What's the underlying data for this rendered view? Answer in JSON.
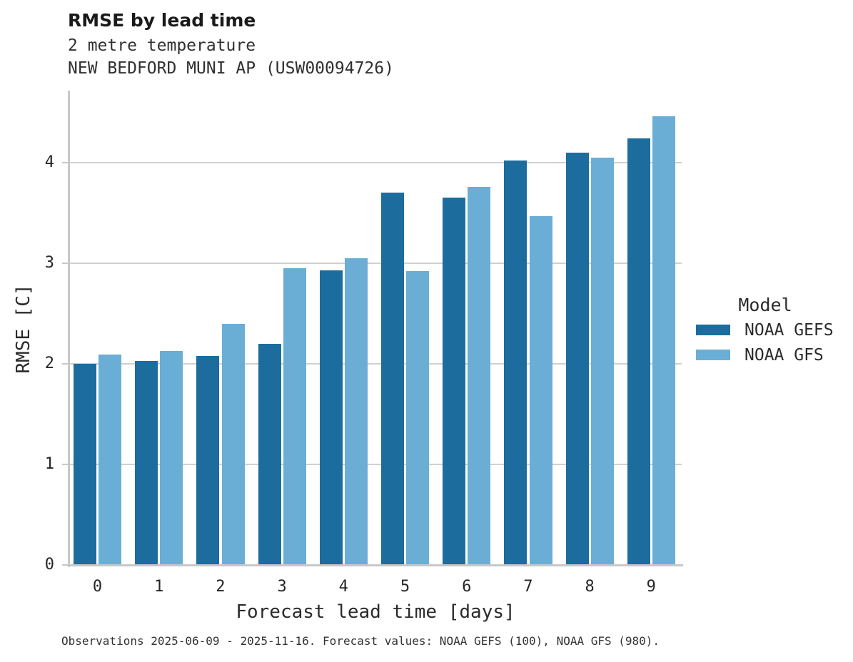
{
  "header": {
    "title": "RMSE by lead time",
    "subtitle": "2 metre temperature",
    "station": "NEW BEDFORD MUNI AP (USW00094726)"
  },
  "chart_data": {
    "type": "bar",
    "title": "RMSE by lead time",
    "subtitle": "2 metre temperature",
    "station": "NEW BEDFORD MUNI AP (USW00094726)",
    "xlabel": "Forecast lead time [days]",
    "ylabel": "RMSE [C]",
    "categories": [
      "0",
      "1",
      "2",
      "3",
      "4",
      "5",
      "6",
      "7",
      "8",
      "9"
    ],
    "series": [
      {
        "name": "NOAA GEFS",
        "color": "#1c6d9d",
        "values": [
          2.0,
          2.03,
          2.08,
          2.2,
          2.93,
          3.7,
          3.65,
          4.02,
          4.1,
          4.24
        ]
      },
      {
        "name": "NOAA GFS",
        "color": "#6aaed6",
        "values": [
          2.09,
          2.13,
          2.4,
          2.95,
          3.05,
          2.92,
          3.76,
          3.47,
          4.05,
          4.46
        ]
      }
    ],
    "ylim": [
      0,
      4.72
    ],
    "yticks": [
      0,
      1,
      2,
      3,
      4
    ],
    "grid": "horizontal",
    "legend_title": "Model",
    "legend_position": "right"
  },
  "footer": {
    "caption": "Observations 2025-06-09 - 2025-11-16. Forecast values: NOAA GEFS (100), NOAA GFS (980)."
  },
  "colors": {
    "bar_dark": "#1c6d9d",
    "bar_light": "#6aaed6",
    "grid": "#d0d0d0",
    "axis": "#c8c8c8",
    "title_text": "#1a1a1a",
    "body_text": "#2b2b2b"
  }
}
